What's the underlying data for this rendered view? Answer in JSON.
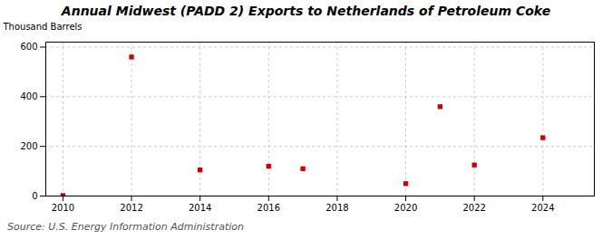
{
  "chart_data": {
    "type": "scatter",
    "title": "Annual Midwest (PADD 2) Exports to Netherlands of Petroleum Coke",
    "ylabel": "Thousand Barrels",
    "annotation": "Source: U.S. Energy Information Administration",
    "x": [
      2010,
      2012,
      2014,
      2016,
      2017,
      2020,
      2021,
      2022,
      2024
    ],
    "values": [
      2,
      560,
      105,
      120,
      110,
      50,
      360,
      125,
      235
    ],
    "color": "#cc0000",
    "marker": "square",
    "xlim": [
      2009.5,
      2025.5
    ],
    "xticks": [
      2010,
      2012,
      2014,
      2016,
      2018,
      2020,
      2022,
      2024
    ],
    "ylim": [
      0,
      620
    ],
    "yticks": [
      0,
      200,
      400,
      600
    ],
    "grid": true
  }
}
